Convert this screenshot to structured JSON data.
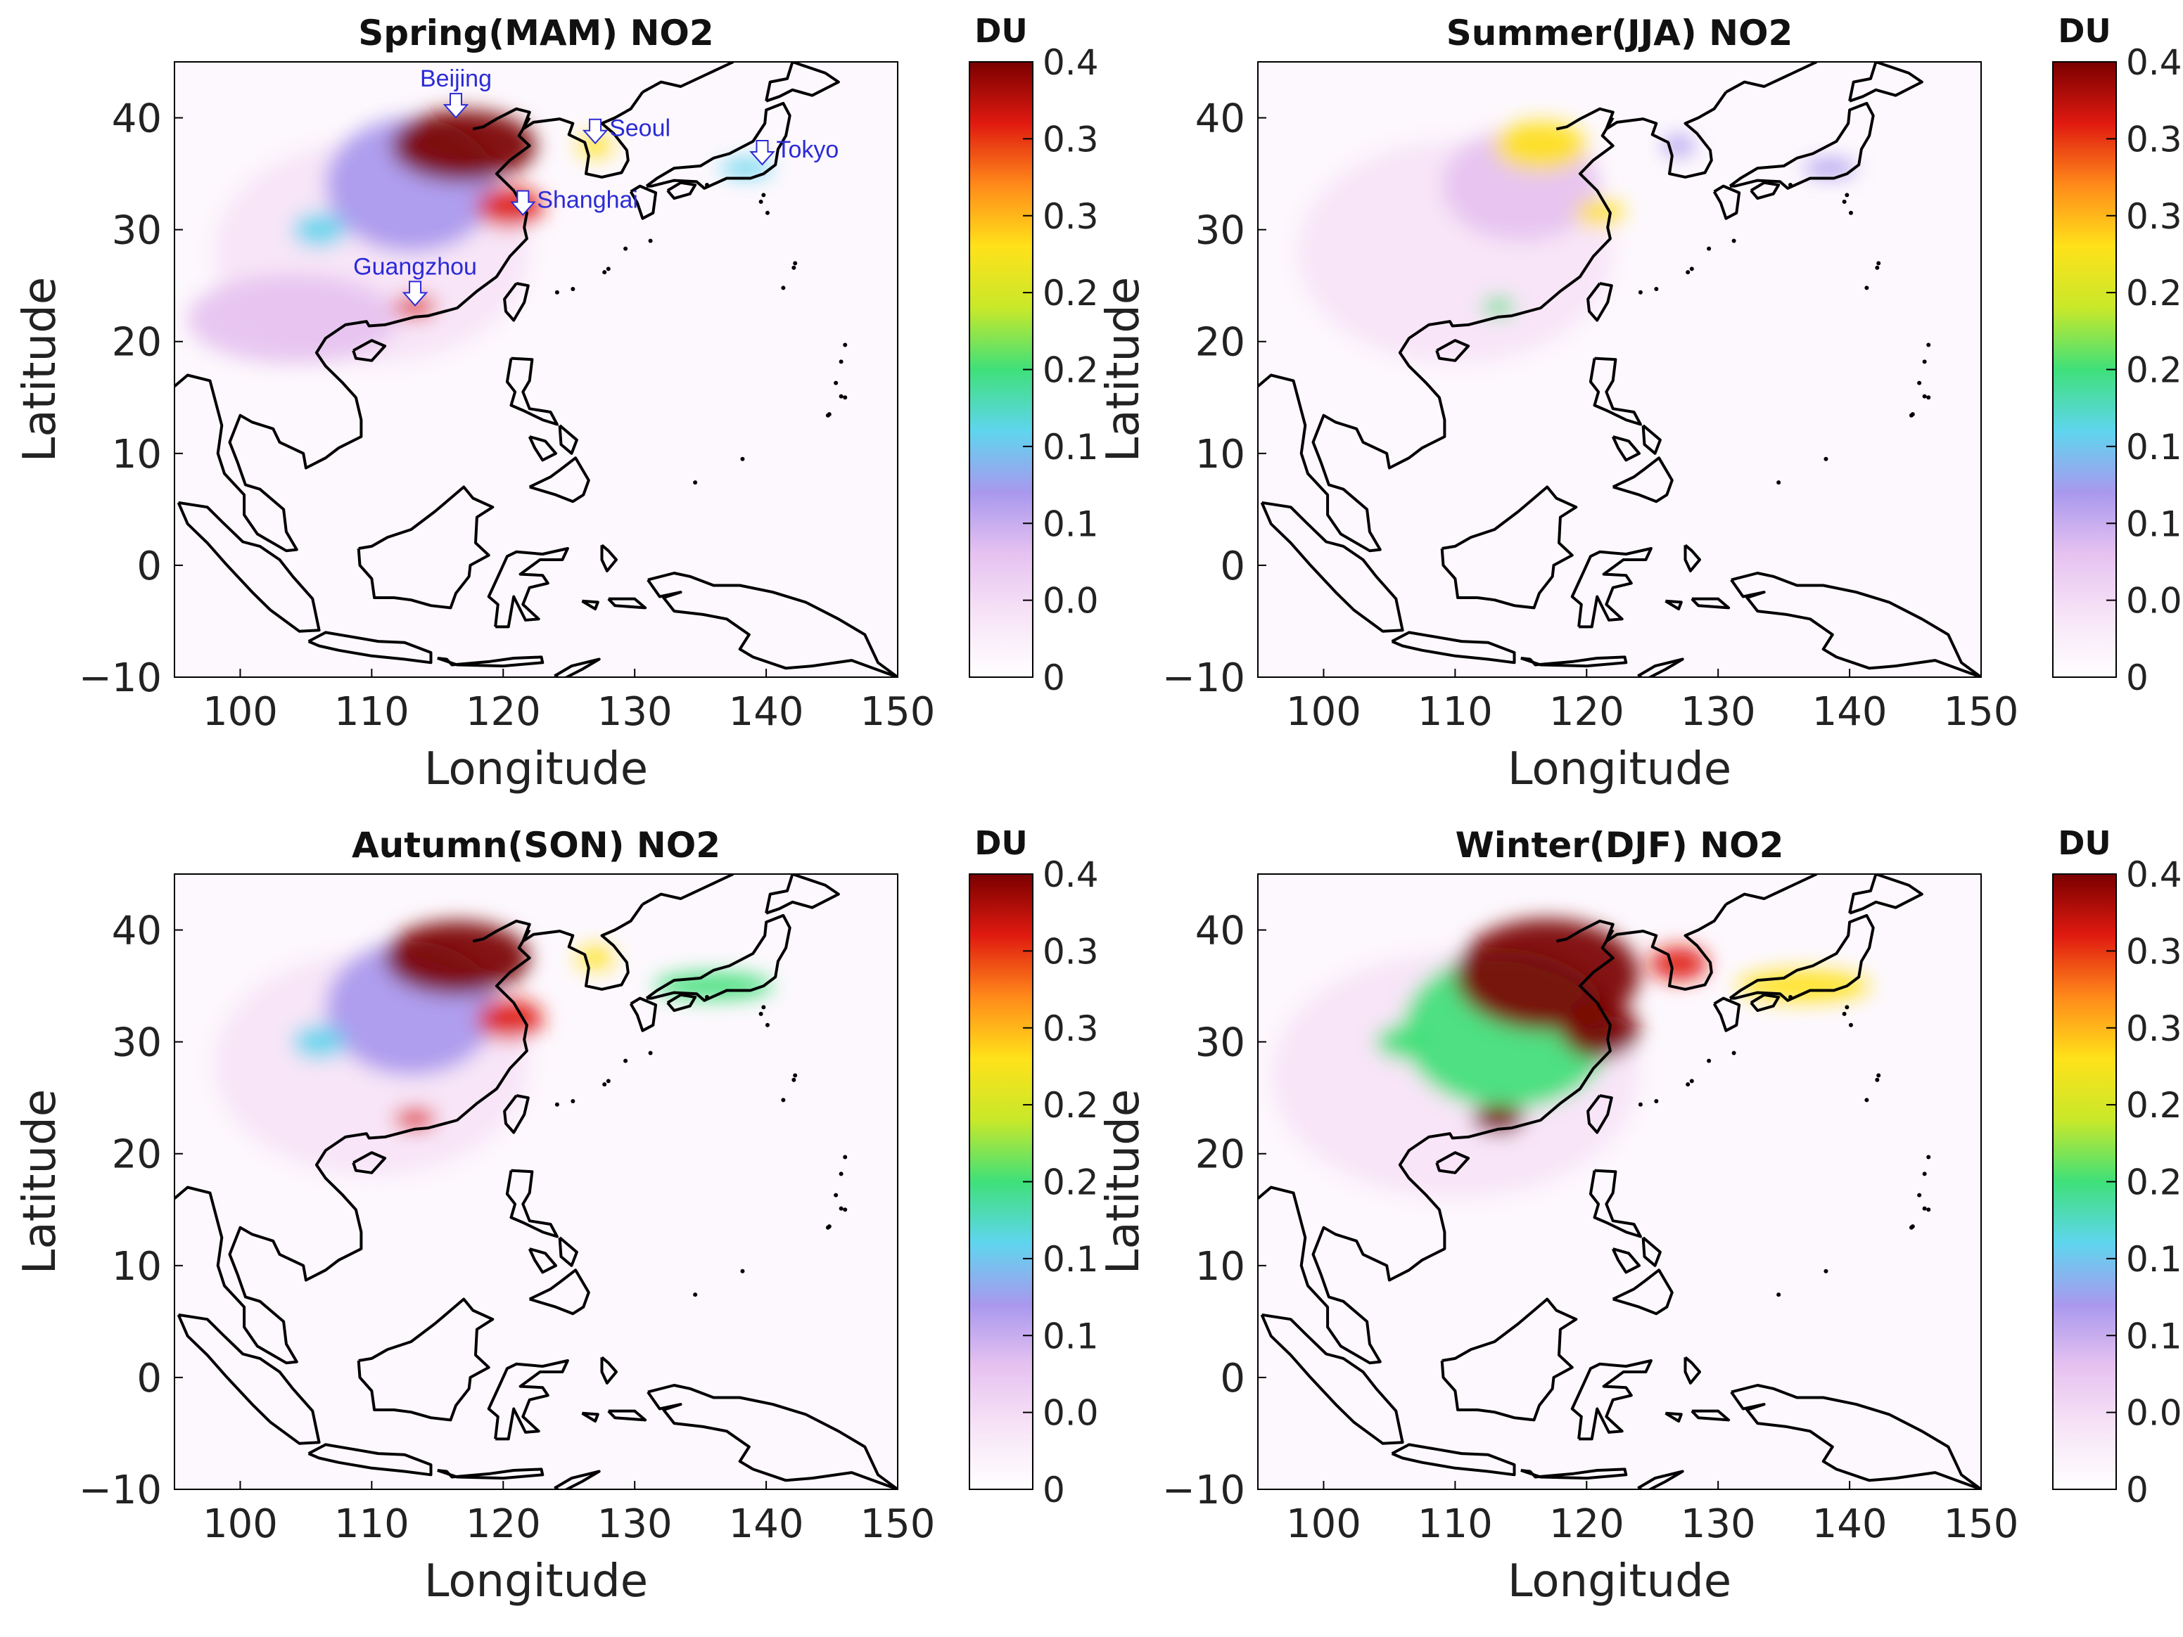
{
  "figure": {
    "panels": [
      {
        "id": "spring",
        "title": "Spring(MAM) NO2",
        "xlabel": "Longitude",
        "ylabel": "Latitude",
        "xticks": [
          "100",
          "110",
          "120",
          "130",
          "140",
          "150"
        ],
        "yticks": [
          "40",
          "30",
          "20",
          "10",
          "0",
          "−10"
        ],
        "colorbar": {
          "unit": "DU",
          "labels": [
            "0.4",
            "0.3",
            "0.3",
            "0.2",
            "0.2",
            "0.1",
            "0.1",
            "0.0",
            "0"
          ]
        },
        "cities": [
          {
            "name": "Beijing",
            "lon": 116.4,
            "lat": 39.9
          },
          {
            "name": "Seoul",
            "lon": 127.0,
            "lat": 37.6
          },
          {
            "name": "Tokyo",
            "lon": 139.7,
            "lat": 35.7
          },
          {
            "name": "Shanghai",
            "lon": 121.5,
            "lat": 31.2
          },
          {
            "name": "Guangzhou",
            "lon": 113.3,
            "lat": 23.1
          }
        ]
      },
      {
        "id": "summer",
        "title": "Summer(JJA) NO2",
        "xlabel": "Longitude",
        "ylabel": "Latitude",
        "xticks": [
          "100",
          "110",
          "120",
          "130",
          "140",
          "150"
        ],
        "yticks": [
          "40",
          "30",
          "20",
          "10",
          "0",
          "−10"
        ],
        "colorbar": {
          "unit": "DU",
          "labels": [
            "0.4",
            "0.3",
            "0.3",
            "0.2",
            "0.2",
            "0.1",
            "0.1",
            "0.0",
            "0"
          ]
        },
        "cities": []
      },
      {
        "id": "autumn",
        "title": "Autumn(SON) NO2",
        "xlabel": "Longitude",
        "ylabel": "Latitude",
        "xticks": [
          "100",
          "110",
          "120",
          "130",
          "140",
          "150"
        ],
        "yticks": [
          "40",
          "30",
          "20",
          "10",
          "0",
          "−10"
        ],
        "colorbar": {
          "unit": "DU",
          "labels": [
            "0.4",
            "0.3",
            "0.3",
            "0.2",
            "0.2",
            "0.1",
            "0.1",
            "0.0",
            "0"
          ]
        },
        "cities": []
      },
      {
        "id": "winter",
        "title": "Winter(DJF) NO2",
        "xlabel": "Longitude",
        "ylabel": "Latitude",
        "xticks": [
          "100",
          "110",
          "120",
          "130",
          "140",
          "150"
        ],
        "yticks": [
          "40",
          "30",
          "20",
          "10",
          "0",
          "−10"
        ],
        "colorbar": {
          "unit": "DU",
          "labels": [
            "0.4",
            "0.3",
            "0.3",
            "0.2",
            "0.2",
            "0.1",
            "0.1",
            "0.0",
            "0"
          ]
        },
        "cities": []
      }
    ],
    "map_extent": {
      "lon_min": 95,
      "lon_max": 150,
      "lat_min": -10,
      "lat_max": 45
    },
    "colormap": [
      "#ffffff",
      "#f7e4f7",
      "#e6c2f0",
      "#a998ee",
      "#5fd5ee",
      "#3fe07a",
      "#c8e82a",
      "#ffe21a",
      "#ff8a1a",
      "#e01a10",
      "#7a0000"
    ],
    "hotspots": {
      "spring": [
        {
          "lon": 117,
          "lat": 37.5,
          "rlon": 5.5,
          "rlat": 3.2,
          "v": 0.4
        },
        {
          "lon": 120.5,
          "lat": 32,
          "rlon": 2.5,
          "rlat": 1.8,
          "v": 0.36
        },
        {
          "lon": 113.3,
          "lat": 23.1,
          "rlon": 1.6,
          "rlat": 1.0,
          "v": 0.36
        },
        {
          "lon": 113,
          "lat": 34,
          "rlon": 6.5,
          "rlat": 6,
          "v": 0.12
        },
        {
          "lon": 127,
          "lat": 37.5,
          "rlon": 1.3,
          "rlat": 1.0,
          "v": 0.26
        },
        {
          "lon": 106,
          "lat": 30,
          "rlon": 2,
          "rlat": 1.5,
          "v": 0.14
        },
        {
          "lon": 104,
          "lat": 22,
          "rlon": 8,
          "rlat": 4,
          "v": 0.07
        },
        {
          "lon": 138.5,
          "lat": 35.5,
          "rlon": 2,
          "rlat": 0.8,
          "v": 0.14
        },
        {
          "lon": 110,
          "lat": 28,
          "rlon": 12,
          "rlat": 10,
          "v": 0.04
        }
      ],
      "summer": [
        {
          "lon": 116.5,
          "lat": 37.5,
          "rlon": 3.5,
          "rlat": 2.2,
          "v": 0.3
        },
        {
          "lon": 121,
          "lat": 31.5,
          "rlon": 1.8,
          "rlat": 1.2,
          "v": 0.28
        },
        {
          "lon": 113.3,
          "lat": 23.1,
          "rlon": 1.2,
          "rlat": 0.8,
          "v": 0.2
        },
        {
          "lon": 115,
          "lat": 34,
          "rlon": 6,
          "rlat": 5,
          "v": 0.09
        },
        {
          "lon": 127,
          "lat": 37.5,
          "rlon": 1.2,
          "rlat": 0.9,
          "v": 0.13
        },
        {
          "lon": 138.5,
          "lat": 35.5,
          "rlon": 2,
          "rlat": 0.8,
          "v": 0.1
        },
        {
          "lon": 110,
          "lat": 28,
          "rlon": 12,
          "rlat": 10,
          "v": 0.03
        }
      ],
      "autumn": [
        {
          "lon": 116.5,
          "lat": 37.5,
          "rlon": 5.5,
          "rlat": 3.3,
          "v": 0.4
        },
        {
          "lon": 120.5,
          "lat": 32,
          "rlon": 2.5,
          "rlat": 1.8,
          "v": 0.35
        },
        {
          "lon": 113.3,
          "lat": 23.1,
          "rlon": 1.6,
          "rlat": 1.0,
          "v": 0.34
        },
        {
          "lon": 113,
          "lat": 33,
          "rlon": 6.5,
          "rlat": 6,
          "v": 0.13
        },
        {
          "lon": 127,
          "lat": 37.5,
          "rlon": 1.4,
          "rlat": 1.0,
          "v": 0.3
        },
        {
          "lon": 136,
          "lat": 35,
          "rlon": 4.5,
          "rlat": 1.2,
          "v": 0.22
        },
        {
          "lon": 106,
          "lat": 30,
          "rlon": 2,
          "rlat": 1.5,
          "v": 0.15
        },
        {
          "lon": 110,
          "lat": 28,
          "rlon": 12,
          "rlat": 10,
          "v": 0.04
        }
      ],
      "winter": [
        {
          "lon": 117,
          "lat": 36,
          "rlon": 7,
          "rlat": 5,
          "v": 0.4
        },
        {
          "lon": 121,
          "lat": 31,
          "rlon": 3,
          "rlat": 2.5,
          "v": 0.4
        },
        {
          "lon": 113.3,
          "lat": 23.1,
          "rlon": 2,
          "rlat": 1.3,
          "v": 0.38
        },
        {
          "lon": 114,
          "lat": 31,
          "rlon": 8,
          "rlat": 7,
          "v": 0.18
        },
        {
          "lon": 127,
          "lat": 37,
          "rlon": 2.2,
          "rlat": 1.5,
          "v": 0.36
        },
        {
          "lon": 136.5,
          "lat": 35,
          "rlon": 5,
          "rlat": 1.4,
          "v": 0.3
        },
        {
          "lon": 106,
          "lat": 30,
          "rlon": 2,
          "rlat": 1.5,
          "v": 0.2
        },
        {
          "lon": 110,
          "lat": 27,
          "rlon": 14,
          "rlat": 11,
          "v": 0.05
        }
      ]
    }
  }
}
